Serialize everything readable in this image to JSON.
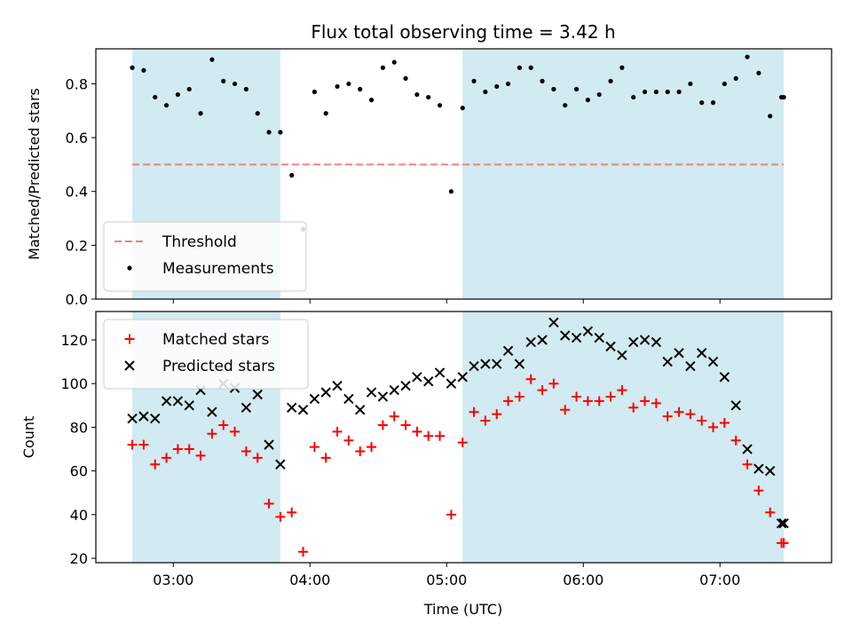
{
  "chart_data": {
    "type": "scatter",
    "title": "Flux total observing time = 3.42 h",
    "xlabel": "Time (UTC)",
    "x_ticks": [
      "03:00",
      "04:00",
      "05:00",
      "06:00",
      "07:00"
    ],
    "xlim": [
      "02:26",
      "07:49"
    ],
    "highlight_intervals": [
      [
        "02:42",
        "03:47"
      ],
      [
        "05:07",
        "07:28"
      ]
    ],
    "highlight_color": "#add8e6",
    "panels": [
      {
        "ylabel": "Matched/Predicted stars",
        "ylim": [
          0,
          0.93
        ],
        "y_ticks": [
          "0.0",
          "0.2",
          "0.4",
          "0.6",
          "0.8"
        ],
        "legend_position": "lower-left",
        "threshold": {
          "name": "Threshold",
          "value": 0.5,
          "color": "#f08080",
          "style": "dashed"
        },
        "series": [
          {
            "name": "Measurements",
            "marker": "dot",
            "color": "#000000",
            "x": [
              "02:42",
              "02:47",
              "02:52",
              "02:57",
              "03:02",
              "03:07",
              "03:12",
              "03:17",
              "03:22",
              "03:27",
              "03:32",
              "03:37",
              "03:42",
              "03:47",
              "03:52",
              "03:57",
              "04:02",
              "04:07",
              "04:12",
              "04:17",
              "04:22",
              "04:27",
              "04:32",
              "04:37",
              "04:42",
              "04:47",
              "04:52",
              "04:57",
              "05:02",
              "05:07",
              "05:12",
              "05:17",
              "05:22",
              "05:27",
              "05:32",
              "05:37",
              "05:42",
              "05:47",
              "05:52",
              "05:57",
              "06:02",
              "06:07",
              "06:12",
              "06:17",
              "06:22",
              "06:27",
              "06:32",
              "06:37",
              "06:42",
              "06:47",
              "06:52",
              "06:57",
              "07:02",
              "07:07",
              "07:12",
              "07:17",
              "07:22",
              "07:27",
              "07:28"
            ],
            "y": [
              0.86,
              0.85,
              0.75,
              0.72,
              0.76,
              0.78,
              0.69,
              0.89,
              0.81,
              0.8,
              0.78,
              0.69,
              0.62,
              0.62,
              0.46,
              0.26,
              0.77,
              0.69,
              0.79,
              0.8,
              0.78,
              0.74,
              0.86,
              0.88,
              0.82,
              0.76,
              0.75,
              0.72,
              0.4,
              0.71,
              0.81,
              0.77,
              0.79,
              0.8,
              0.86,
              0.86,
              0.81,
              0.78,
              0.72,
              0.78,
              0.74,
              0.76,
              0.81,
              0.86,
              0.75,
              0.77,
              0.77,
              0.77,
              0.77,
              0.8,
              0.73,
              0.73,
              0.8,
              0.82,
              0.9,
              0.84,
              0.68,
              0.75,
              0.75
            ]
          }
        ]
      },
      {
        "ylabel": "Count",
        "ylim": [
          18,
          133
        ],
        "y_ticks": [
          "20",
          "40",
          "60",
          "80",
          "100",
          "120"
        ],
        "legend_position": "upper-left",
        "series": [
          {
            "name": "Matched stars",
            "marker": "plus",
            "color": "#ff0000",
            "x": [
              "02:42",
              "02:47",
              "02:52",
              "02:57",
              "03:02",
              "03:07",
              "03:12",
              "03:17",
              "03:22",
              "03:27",
              "03:32",
              "03:37",
              "03:42",
              "03:47",
              "03:52",
              "03:57",
              "04:02",
              "04:07",
              "04:12",
              "04:17",
              "04:22",
              "04:27",
              "04:32",
              "04:37",
              "04:42",
              "04:47",
              "04:52",
              "04:57",
              "05:02",
              "05:07",
              "05:12",
              "05:17",
              "05:22",
              "05:27",
              "05:32",
              "05:37",
              "05:42",
              "05:47",
              "05:52",
              "05:57",
              "06:02",
              "06:07",
              "06:12",
              "06:17",
              "06:22",
              "06:27",
              "06:32",
              "06:37",
              "06:42",
              "06:47",
              "06:52",
              "06:57",
              "07:02",
              "07:07",
              "07:12",
              "07:17",
              "07:22",
              "07:27",
              "07:28"
            ],
            "y": [
              72,
              72,
              63,
              66,
              70,
              70,
              67,
              77,
              81,
              78,
              69,
              66,
              45,
              39,
              41,
              23,
              71,
              66,
              78,
              74,
              69,
              71,
              81,
              85,
              81,
              78,
              76,
              76,
              40,
              73,
              87,
              83,
              86,
              92,
              94,
              102,
              97,
              100,
              88,
              94,
              92,
              92,
              94,
              97,
              89,
              92,
              91,
              85,
              87,
              86,
              83,
              80,
              82,
              74,
              63,
              51,
              41,
              27,
              27
            ]
          },
          {
            "name": "Predicted stars",
            "marker": "x",
            "color": "#000000",
            "x": [
              "02:42",
              "02:47",
              "02:52",
              "02:57",
              "03:02",
              "03:07",
              "03:12",
              "03:17",
              "03:22",
              "03:27",
              "03:32",
              "03:37",
              "03:42",
              "03:47",
              "03:52",
              "03:57",
              "04:02",
              "04:07",
              "04:12",
              "04:17",
              "04:22",
              "04:27",
              "04:32",
              "04:37",
              "04:42",
              "04:47",
              "04:52",
              "04:57",
              "05:02",
              "05:07",
              "05:12",
              "05:17",
              "05:22",
              "05:27",
              "05:32",
              "05:37",
              "05:42",
              "05:47",
              "05:52",
              "05:57",
              "06:02",
              "06:07",
              "06:12",
              "06:17",
              "06:22",
              "06:27",
              "06:32",
              "06:37",
              "06:42",
              "06:47",
              "06:52",
              "06:57",
              "07:02",
              "07:07",
              "07:12",
              "07:17",
              "07:22",
              "07:27",
              "07:28"
            ],
            "y": [
              84,
              85,
              84,
              92,
              92,
              90,
              97,
              87,
              100,
              98,
              89,
              95,
              72,
              63,
              89,
              88,
              93,
              96,
              99,
              93,
              88,
              96,
              94,
              97,
              99,
              103,
              101,
              105,
              100,
              103,
              108,
              109,
              109,
              115,
              109,
              119,
              120,
              128,
              122,
              121,
              124,
              121,
              117,
              113,
              119,
              120,
              119,
              110,
              114,
              108,
              114,
              110,
              103,
              90,
              70,
              61,
              60,
              36,
              36
            ]
          }
        ]
      }
    ]
  }
}
